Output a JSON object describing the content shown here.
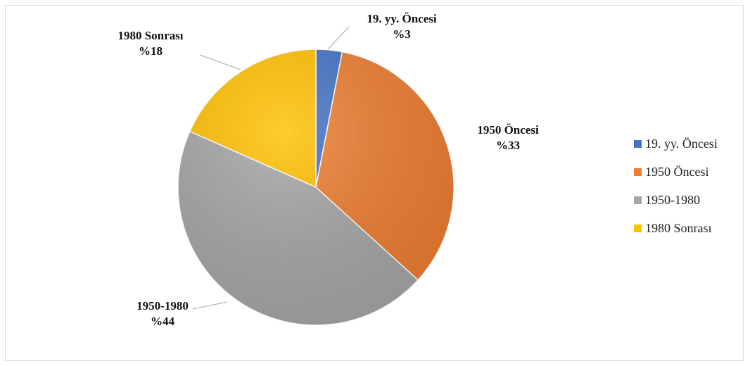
{
  "chart_data": {
    "type": "pie",
    "title": "",
    "slices": [
      {
        "label": "19. yy. Öncesi",
        "value": 3,
        "pct_label": "%3",
        "color": "#4472c4"
      },
      {
        "label": "1950 Öncesi",
        "value": 33,
        "pct_label": "%33",
        "color": "#ed7d31"
      },
      {
        "label": "1950-1980",
        "value": 44,
        "pct_label": "%44",
        "color": "#a5a5a5"
      },
      {
        "label": "1980 Sonrası",
        "value": 18,
        "pct_label": "%18",
        "color": "#ffc000"
      }
    ],
    "legend_position": "right"
  }
}
